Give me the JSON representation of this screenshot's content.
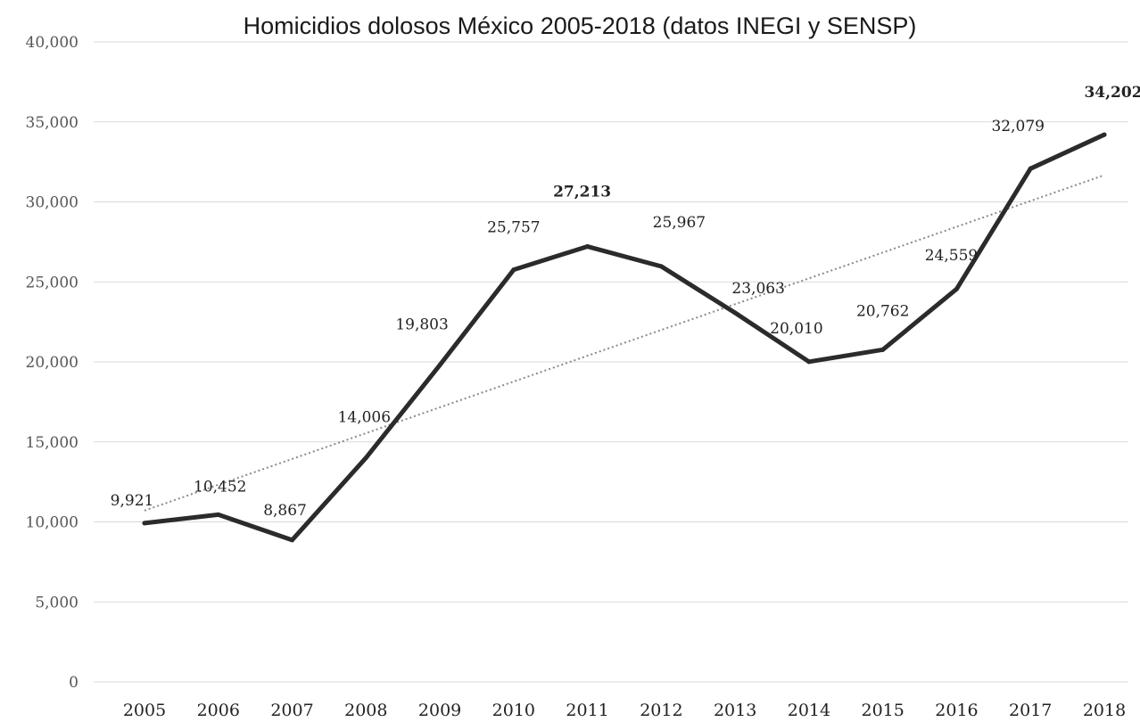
{
  "chart_data": {
    "type": "line",
    "title": "Homicidios dolosos México 2005-2018 (datos INEGI y SENSP)",
    "xlabel": "",
    "ylabel": "",
    "categories": [
      "2005",
      "2006",
      "2007",
      "2008",
      "2009",
      "2010",
      "2011",
      "2012",
      "2013",
      "2014",
      "2015",
      "2016",
      "2017",
      "2018"
    ],
    "series": [
      {
        "values": [
          9921,
          10452,
          8867,
          14006,
          19803,
          25757,
          27213,
          25967,
          23063,
          20010,
          20762,
          24559,
          32079,
          34202
        ],
        "labels": [
          "9,921",
          "10,452",
          "8,867",
          "14,006",
          "19,803",
          "25,757",
          "27,213",
          "25,967",
          "23,063",
          "20,010",
          "20,762",
          "24,559",
          "32,079",
          "34,202"
        ],
        "color": "#2b2b2b"
      }
    ],
    "trendline": {
      "type": "linear",
      "style": "dotted",
      "color": "#8a8a8a"
    },
    "ylim": [
      0,
      40000
    ],
    "yticks": [
      "0",
      "5,000",
      "10,000",
      "15,000",
      "20,000",
      "25,000",
      "30,000",
      "35,000",
      "40,000"
    ],
    "grid": true,
    "legend": "none",
    "bold_labels": [
      "2011",
      "2018"
    ]
  }
}
